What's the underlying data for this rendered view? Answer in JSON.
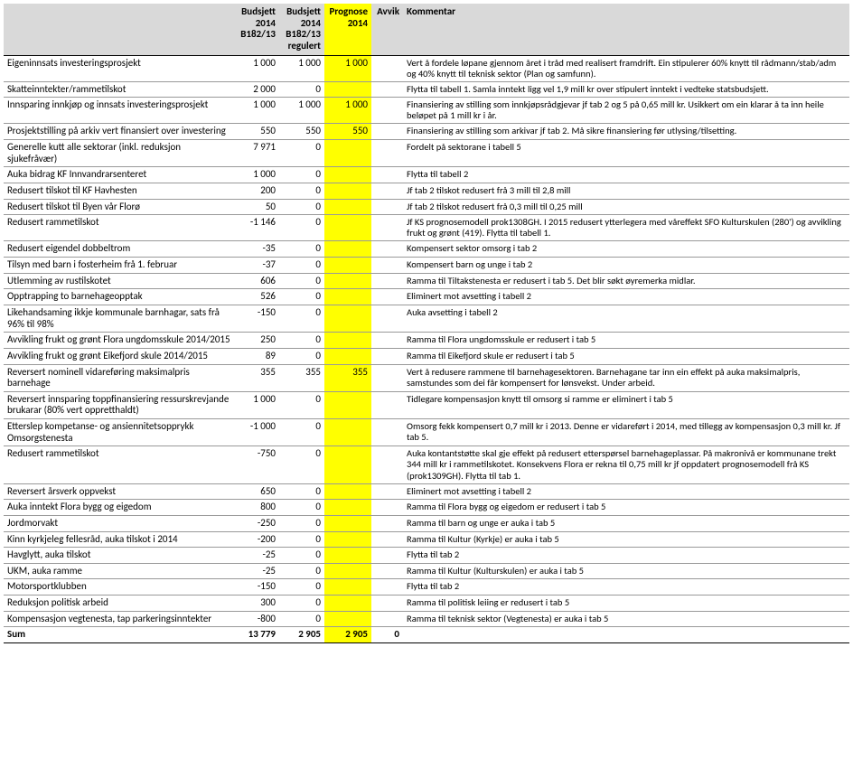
{
  "headers": {
    "label": "",
    "budsjett1": "Budsjett 2014 B182/13",
    "budsjett2": "Budsjett 2014 B182/13 regulert",
    "prognose": "Prognose 2014",
    "avvik": "Avvik",
    "kommentar": "Kommentar"
  },
  "colors": {
    "header_bg": "#d9d9d9",
    "prognose_bg": "#ffff00",
    "border": "#000000",
    "row_border": "#999999"
  },
  "rows": [
    {
      "label": "Eigeninnsats investeringsprosjekt",
      "b1": "1 000",
      "b2": "1 000",
      "prog": "1 000",
      "avvik": "",
      "comment": "Vert å fordele løpane gjennom året i tråd med realisert framdrift. Ein stipulerer 60% knytt til rådmann/stab/adm og 40% knytt til teknisk sektor (Plan og samfunn)."
    },
    {
      "label": "Skatteinntekter/rammetilskot",
      "b1": "2 000",
      "b2": "0",
      "prog": "",
      "avvik": "",
      "comment": "Flytta til tabell 1. Samla inntekt ligg vel 1,9 mill kr over stipulert inntekt i vedteke statsbudsjett."
    },
    {
      "label": "Innsparing innkjøp og innsats investeringsprosjekt",
      "b1": "1 000",
      "b2": "1 000",
      "prog": "1 000",
      "avvik": "",
      "comment": "Finansiering av stilling som innkjøpsrådgjevar jf tab 2 og 5 på 0,65 mill kr. Usikkert om ein klarar å ta inn heile beløpet på 1 mill kr i år."
    },
    {
      "label": "Prosjektstilling på arkiv vert finansiert over investering",
      "b1": "550",
      "b2": "550",
      "prog": "550",
      "avvik": "",
      "comment": "Finansiering av stilling som arkivar jf tab 2. Må sikre finansiering før utlysing/tilsetting."
    },
    {
      "label": "Generelle kutt alle sektorar (inkl. reduksjon sjukefråvær)",
      "b1": "7 971",
      "b2": "0",
      "prog": "",
      "avvik": "",
      "comment": "Fordelt på sektorane i tabell 5"
    },
    {
      "label": "Auka bidrag KF Innvandrarsenteret",
      "b1": "1 000",
      "b2": "0",
      "prog": "",
      "avvik": "",
      "comment": "Flytta til tabell 2"
    },
    {
      "label": "Redusert tilskot til KF Havhesten",
      "b1": "200",
      "b2": "0",
      "prog": "",
      "avvik": "",
      "comment": "Jf tab 2 tilskot redusert frå 3 mill til 2,8 mill"
    },
    {
      "label": "Redusert tilskot til Byen vår Florø",
      "b1": "50",
      "b2": "0",
      "prog": "",
      "avvik": "",
      "comment": "Jf tab 2 tilskot redusert frå 0,3 mill til 0,25 mill"
    },
    {
      "label": "Redusert rammetilskot",
      "b1": "-1 146",
      "b2": "0",
      "prog": "",
      "avvik": "",
      "comment": "Jf KS prognosemodell prok1308GH. I 2015 redusert ytterlegera med våreffekt SFO Kulturskulen (280') og avvikling frukt og grønt (419). Flytta til tabell 1."
    },
    {
      "label": "Redusert eigendel dobbeltrom",
      "b1": "-35",
      "b2": "0",
      "prog": "",
      "avvik": "",
      "comment": "Kompensert sektor omsorg i tab 2"
    },
    {
      "label": "Tilsyn med barn i fosterheim frå 1. februar",
      "b1": "-37",
      "b2": "0",
      "prog": "",
      "avvik": "",
      "comment": "Kompensert barn og unge i tab 2"
    },
    {
      "label": "Utlemming av rustilskotet",
      "b1": "606",
      "b2": "0",
      "prog": "",
      "avvik": "",
      "comment": "Ramma til Tiltakstenesta er redusert i tab 5. Det blir søkt øyremerka midlar."
    },
    {
      "label": "Opptrapping to barnehageopptak",
      "b1": "526",
      "b2": "0",
      "prog": "",
      "avvik": "",
      "comment": "Eliminert mot avsetting i tabell 2"
    },
    {
      "label": "Likehandsaming ikkje kommunale barnhagar, sats frå 96% til 98%",
      "b1": "-150",
      "b2": "0",
      "prog": "",
      "avvik": "",
      "comment": "Auka avsetting i tabell 2"
    },
    {
      "label": "Avvikling frukt og grønt Flora ungdomsskule 2014/2015",
      "b1": "250",
      "b2": "0",
      "prog": "",
      "avvik": "",
      "comment": "Ramma til Flora ungdomsskule er redusert i tab 5"
    },
    {
      "label": "Avvikling frukt og grønt Eikefjord skule 2014/2015",
      "b1": "89",
      "b2": "0",
      "prog": "",
      "avvik": "",
      "comment": "Ramma til Eikefjord skule er redusert i tab 5"
    },
    {
      "label": "Reversert nominell vidareføring maksimalpris barnehage",
      "b1": "355",
      "b2": "355",
      "prog": "355",
      "avvik": "",
      "comment": "Vert å redusere rammene til barnehagesektoren. Barnehagane tar inn ein effekt på auka maksimalpris, samstundes som dei får kompensert for lønsvekst. Under arbeid."
    },
    {
      "label": "Reversert innsparing toppfinansiering ressurskrevjande brukarar (80% vert oppretthaldt)",
      "b1": "1 000",
      "b2": "0",
      "prog": "",
      "avvik": "",
      "comment": "Tidlegare kompensasjon knytt til omsorg si ramme er eliminert i tab 5"
    },
    {
      "label": "Etterslep kompetanse- og ansiennitetsopprykk Omsorgstenesta",
      "b1": "-1 000",
      "b2": "0",
      "prog": "",
      "avvik": "",
      "comment": "Omsorg fekk kompensert 0,7 mill kr i 2013. Denne er vidareført i 2014, med tillegg av kompensasjon 0,3 mill kr. Jf tab 5."
    },
    {
      "label": "Redusert rammetilskot",
      "b1": "-750",
      "b2": "0",
      "prog": "",
      "avvik": "",
      "comment": "Auka kontantstøtte skal gje effekt på redusert etterspørsel barnehageplassar. På makronivå er kommunane trekt 344 mill kr i rammetilskotet. Konsekvens Flora er rekna til 0,75 mill kr jf oppdatert prognosemodell frå KS (prok1309GH). Flytta til tab 1."
    },
    {
      "label": "Reversert årsverk oppvekst",
      "b1": "650",
      "b2": "0",
      "prog": "",
      "avvik": "",
      "comment": "Eliminert mot avsetting i tabell 2"
    },
    {
      "label": "Auka inntekt Flora bygg og eigedom",
      "b1": "800",
      "b2": "0",
      "prog": "",
      "avvik": "",
      "comment": "Ramma til Flora bygg og eigedom er redusert i tab 5"
    },
    {
      "label": "Jordmorvakt",
      "b1": "-250",
      "b2": "0",
      "prog": "",
      "avvik": "",
      "comment": "Ramma til barn og unge er auka i tab 5"
    },
    {
      "label": "Kinn kyrkjeleg fellesråd, auka tilskot i 2014",
      "b1": "-200",
      "b2": "0",
      "prog": "",
      "avvik": "",
      "comment": "Ramma til Kultur (Kyrkje) er auka i tab 5"
    },
    {
      "label": "Havglytt, auka tilskot",
      "b1": "-25",
      "b2": "0",
      "prog": "",
      "avvik": "",
      "comment": "Flytta til tab 2"
    },
    {
      "label": "UKM, auka ramme",
      "b1": "-25",
      "b2": "0",
      "prog": "",
      "avvik": "",
      "comment": "Ramma til Kultur (Kulturskulen) er auka i tab 5"
    },
    {
      "label": "Motorsportklubben",
      "b1": "-150",
      "b2": "0",
      "prog": "",
      "avvik": "",
      "comment": "Flytta til tab 2"
    },
    {
      "label": "Reduksjon politisk arbeid",
      "b1": "300",
      "b2": "0",
      "prog": "",
      "avvik": "",
      "comment": "Ramma til politisk leiing er redusert i tab 5"
    },
    {
      "label": "Kompensasjon vegtenesta, tap parkeringsinntekter",
      "b1": "-800",
      "b2": "0",
      "prog": "",
      "avvik": "",
      "comment": "Ramma til teknisk sektor (Vegtenesta) er auka i tab 5"
    }
  ],
  "sum": {
    "label": "Sum",
    "b1": "13 779",
    "b2": "2 905",
    "prog": "2 905",
    "avvik": "0",
    "comment": ""
  }
}
